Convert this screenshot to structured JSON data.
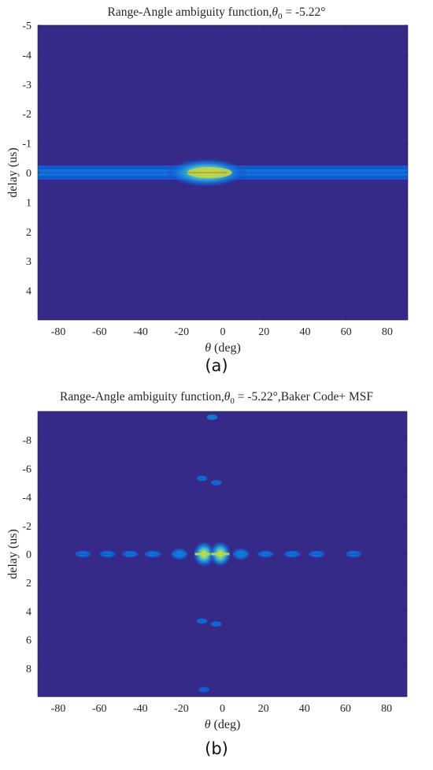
{
  "colors": {
    "background": "#352a87",
    "peak": "#f9fb0e",
    "mid": "#36b5d6",
    "low": "#1b6fd8"
  },
  "chart_data": [
    {
      "type": "heatmap",
      "title_main": "Range-Angle ambiguity function,",
      "title_symbol": "θ",
      "title_subscript": "0",
      "title_rest": " = -5.22°",
      "xlabel_symbol": "θ",
      "xlabel_rest": " (deg)",
      "ylabel": "delay (us)",
      "caption": "(a)",
      "xlim": [
        -90,
        90
      ],
      "ylim": [
        -5,
        5
      ],
      "y_reversed": true,
      "x_ticks": [
        -80,
        -60,
        -40,
        -20,
        0,
        20,
        40,
        60,
        80
      ],
      "y_ticks": [
        -5,
        -4,
        -3,
        -2,
        -1,
        0,
        1,
        2,
        3,
        4
      ],
      "colormap": "parula",
      "peak": {
        "angle_deg": -5.22,
        "delay_us": 0
      },
      "features": [
        {
          "kind": "ridge",
          "delay_us": 0,
          "angle_range": [
            -90,
            90
          ],
          "intensity": 0.45
        },
        {
          "kind": "mainlobe",
          "angle_range": [
            -25,
            15
          ],
          "delay_range": [
            -0.5,
            0.5
          ],
          "intensity": 1.0
        }
      ]
    },
    {
      "type": "heatmap",
      "title_main": "Range-Angle ambiguity function,",
      "title_symbol": "θ",
      "title_subscript": "0",
      "title_rest": " = -5.22°,Baker Code+ MSF",
      "xlabel_symbol": "θ",
      "xlabel_rest": " (deg)",
      "ylabel": "delay (us)",
      "caption": "(b)",
      "xlim": [
        -90,
        90
      ],
      "ylim": [
        -10,
        10
      ],
      "y_reversed": true,
      "x_ticks": [
        -80,
        -60,
        -40,
        -20,
        0,
        20,
        40,
        60,
        80
      ],
      "y_ticks": [
        -8,
        -6,
        -4,
        -2,
        0,
        2,
        4,
        6,
        8
      ],
      "colormap": "parula",
      "peak": {
        "angle_deg": -5.22,
        "delay_us": 0
      },
      "features": [
        {
          "kind": "lobe",
          "angle_deg": -68,
          "delay_us": 0,
          "intensity": 0.25
        },
        {
          "kind": "lobe",
          "angle_deg": -56,
          "delay_us": 0,
          "intensity": 0.25
        },
        {
          "kind": "lobe",
          "angle_deg": -45,
          "delay_us": 0,
          "intensity": 0.3
        },
        {
          "kind": "lobe",
          "angle_deg": -34,
          "delay_us": 0,
          "intensity": 0.35
        },
        {
          "kind": "lobe",
          "angle_deg": -21,
          "delay_us": 0,
          "intensity": 0.5
        },
        {
          "kind": "lobe",
          "angle_deg": -9,
          "delay_us": 0,
          "intensity": 1.0
        },
        {
          "kind": "lobe",
          "angle_deg": -1,
          "delay_us": 0,
          "intensity": 1.0
        },
        {
          "kind": "lobe",
          "angle_deg": 9,
          "delay_us": 0,
          "intensity": 0.5
        },
        {
          "kind": "lobe",
          "angle_deg": 21,
          "delay_us": 0,
          "intensity": 0.35
        },
        {
          "kind": "lobe",
          "angle_deg": 34,
          "delay_us": 0,
          "intensity": 0.3
        },
        {
          "kind": "lobe",
          "angle_deg": 46,
          "delay_us": 0,
          "intensity": 0.25
        },
        {
          "kind": "lobe",
          "angle_deg": 64,
          "delay_us": 0,
          "intensity": 0.2
        },
        {
          "kind": "spot",
          "angle_deg": -5,
          "delay_us": -9.6,
          "intensity": 0.35
        },
        {
          "kind": "spot",
          "angle_deg": -10,
          "delay_us": -5.3,
          "intensity": 0.2
        },
        {
          "kind": "spot",
          "angle_deg": -3,
          "delay_us": -5.0,
          "intensity": 0.2
        },
        {
          "kind": "spot",
          "angle_deg": -10,
          "delay_us": 4.7,
          "intensity": 0.2
        },
        {
          "kind": "spot",
          "angle_deg": -3,
          "delay_us": 4.9,
          "intensity": 0.2
        },
        {
          "kind": "spot",
          "angle_deg": -9,
          "delay_us": 9.5,
          "intensity": 0.15
        }
      ]
    }
  ]
}
